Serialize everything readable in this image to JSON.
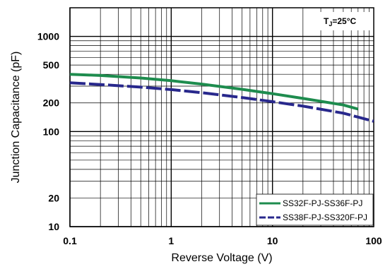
{
  "chart_data": {
    "type": "line",
    "xscale": "log",
    "yscale": "log",
    "xlim": [
      0.1,
      100
    ],
    "ylim": [
      10,
      2000
    ],
    "xlabel": "Reverse  Voltage (V)",
    "ylabel": "Junction Capacitance (pF)",
    "x_ticks": [
      "0.1",
      "1",
      "10",
      "100"
    ],
    "y_ticks": [
      "10",
      "20",
      "100",
      "200",
      "500",
      "1000"
    ],
    "annotation": {
      "main": "T",
      "sub": "J",
      "rest": "=25°C"
    },
    "grid": true,
    "legend_position": "bottom-right",
    "series": [
      {
        "name": "SS32F-PJ-SS36F-PJ",
        "color": "#1e8c4e",
        "style": "solid",
        "x": [
          0.1,
          0.2,
          0.5,
          1,
          2,
          5,
          10,
          20,
          50,
          70
        ],
        "y": [
          400,
          388,
          365,
          342,
          315,
          278,
          250,
          223,
          190,
          172
        ]
      },
      {
        "name": "SS38F-PJ-SS320F-PJ",
        "color": "#28288c",
        "style": "dashed",
        "x": [
          0.1,
          0.2,
          0.5,
          1,
          2,
          5,
          10,
          20,
          50,
          100
        ],
        "y": [
          325,
          312,
          293,
          276,
          256,
          228,
          206,
          185,
          156,
          128
        ]
      }
    ]
  }
}
